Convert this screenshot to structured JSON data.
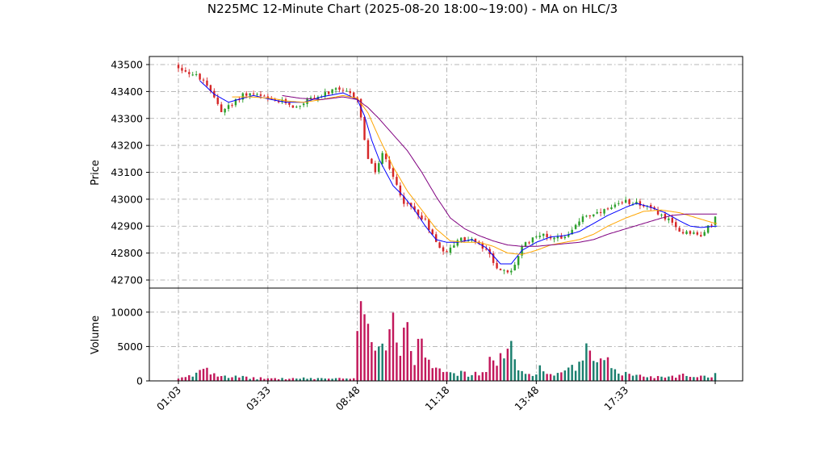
{
  "chart_data": {
    "type": "candlestick",
    "title": "N225MC 12-Minute Chart (2025-08-20 18:00~19:00) - MA on HLC/3",
    "price_panel": {
      "ylabel": "Price",
      "ylim": [
        42670,
        43530
      ],
      "yticks": [
        42700,
        42800,
        42900,
        43000,
        43100,
        43200,
        43300,
        43400,
        43500
      ],
      "grid": true
    },
    "volume_panel": {
      "ylabel": "Volume",
      "ylim": [
        0,
        13500
      ],
      "yticks": [
        0,
        5000,
        10000
      ],
      "grid": true
    },
    "x_tick_labels": [
      "01:03",
      "03:33",
      "08:48",
      "11:18",
      "13:48",
      "17:33"
    ],
    "x_tick_bar_index": [
      0,
      25,
      50,
      75,
      100,
      125
    ],
    "bar_count": 151,
    "colors": {
      "up": "#2ca02c",
      "down": "#d62728",
      "volume_up": "#1a7f6e",
      "volume_down": "#c2185b",
      "ma_fast": "#0000ff",
      "ma_mid": "#ffa500",
      "ma_slow": "#800080",
      "grid": "#a0a0a0"
    },
    "price_path_keypoints": [
      [
        0,
        43490
      ],
      [
        6,
        43450
      ],
      [
        10,
        43380
      ],
      [
        12,
        43330
      ],
      [
        15,
        43350
      ],
      [
        18,
        43390
      ],
      [
        21,
        43390
      ],
      [
        26,
        43365
      ],
      [
        30,
        43360
      ],
      [
        33,
        43340
      ],
      [
        36,
        43370
      ],
      [
        40,
        43385
      ],
      [
        44,
        43405
      ],
      [
        47,
        43395
      ],
      [
        50,
        43375
      ],
      [
        51,
        43300
      ],
      [
        53,
        43150
      ],
      [
        55,
        43100
      ],
      [
        57,
        43170
      ],
      [
        60,
        43080
      ],
      [
        63,
        42990
      ],
      [
        66,
        42960
      ],
      [
        69,
        42920
      ],
      [
        72,
        42840
      ],
      [
        75,
        42800
      ],
      [
        78,
        42850
      ],
      [
        82,
        42850
      ],
      [
        86,
        42810
      ],
      [
        90,
        42730
      ],
      [
        93,
        42730
      ],
      [
        96,
        42820
      ],
      [
        100,
        42870
      ],
      [
        104,
        42860
      ],
      [
        107,
        42860
      ],
      [
        110,
        42880
      ],
      [
        113,
        42940
      ],
      [
        116,
        42940
      ],
      [
        120,
        42960
      ],
      [
        125,
        42990
      ],
      [
        128,
        42990
      ],
      [
        131,
        42970
      ],
      [
        134,
        42950
      ],
      [
        137,
        42920
      ],
      [
        140,
        42880
      ],
      [
        143,
        42880
      ],
      [
        146,
        42860
      ],
      [
        150,
        42930
      ]
    ],
    "ma_fast_keypoints": [
      [
        6,
        43440
      ],
      [
        10,
        43390
      ],
      [
        14,
        43360
      ],
      [
        18,
        43375
      ],
      [
        21,
        43385
      ],
      [
        26,
        43370
      ],
      [
        30,
        43360
      ],
      [
        35,
        43360
      ],
      [
        40,
        43380
      ],
      [
        46,
        43395
      ],
      [
        50,
        43370
      ],
      [
        52,
        43310
      ],
      [
        54,
        43220
      ],
      [
        56,
        43150
      ],
      [
        60,
        43050
      ],
      [
        63,
        43010
      ],
      [
        66,
        42960
      ],
      [
        69,
        42900
      ],
      [
        72,
        42850
      ],
      [
        75,
        42840
      ],
      [
        78,
        42840
      ],
      [
        82,
        42850
      ],
      [
        86,
        42820
      ],
      [
        90,
        42760
      ],
      [
        93,
        42760
      ],
      [
        96,
        42810
      ],
      [
        100,
        42840
      ],
      [
        104,
        42860
      ],
      [
        108,
        42865
      ],
      [
        112,
        42880
      ],
      [
        116,
        42910
      ],
      [
        120,
        42940
      ],
      [
        125,
        42970
      ],
      [
        128,
        42985
      ],
      [
        132,
        42970
      ],
      [
        136,
        42950
      ],
      [
        140,
        42920
      ],
      [
        143,
        42900
      ],
      [
        146,
        42895
      ],
      [
        150,
        42900
      ]
    ],
    "ma_mid_keypoints": [
      [
        15,
        43380
      ],
      [
        20,
        43380
      ],
      [
        26,
        43375
      ],
      [
        30,
        43365
      ],
      [
        35,
        43360
      ],
      [
        40,
        43370
      ],
      [
        46,
        43385
      ],
      [
        50,
        43375
      ],
      [
        53,
        43320
      ],
      [
        56,
        43230
      ],
      [
        60,
        43120
      ],
      [
        64,
        43030
      ],
      [
        68,
        42960
      ],
      [
        72,
        42890
      ],
      [
        76,
        42845
      ],
      [
        80,
        42840
      ],
      [
        84,
        42840
      ],
      [
        88,
        42825
      ],
      [
        92,
        42800
      ],
      [
        96,
        42795
      ],
      [
        100,
        42810
      ],
      [
        104,
        42830
      ],
      [
        108,
        42840
      ],
      [
        112,
        42850
      ],
      [
        116,
        42870
      ],
      [
        120,
        42900
      ],
      [
        125,
        42930
      ],
      [
        130,
        42955
      ],
      [
        135,
        42960
      ],
      [
        140,
        42950
      ],
      [
        145,
        42930
      ],
      [
        150,
        42910
      ]
    ],
    "ma_slow_keypoints": [
      [
        29,
        43385
      ],
      [
        34,
        43375
      ],
      [
        40,
        43370
      ],
      [
        46,
        43380
      ],
      [
        50,
        43370
      ],
      [
        53,
        43340
      ],
      [
        56,
        43300
      ],
      [
        60,
        43240
      ],
      [
        64,
        43180
      ],
      [
        68,
        43100
      ],
      [
        72,
        43010
      ],
      [
        76,
        42930
      ],
      [
        80,
        42890
      ],
      [
        84,
        42865
      ],
      [
        88,
        42845
      ],
      [
        92,
        42830
      ],
      [
        96,
        42825
      ],
      [
        100,
        42825
      ],
      [
        104,
        42830
      ],
      [
        108,
        42835
      ],
      [
        112,
        42840
      ],
      [
        116,
        42850
      ],
      [
        120,
        42870
      ],
      [
        125,
        42890
      ],
      [
        130,
        42910
      ],
      [
        135,
        42930
      ],
      [
        138,
        42940
      ],
      [
        142,
        42945
      ],
      [
        146,
        42945
      ],
      [
        150,
        42945
      ]
    ],
    "volume_profile_keypoints": [
      [
        0,
        300
      ],
      [
        4,
        800
      ],
      [
        7,
        2400
      ],
      [
        9,
        1500
      ],
      [
        12,
        900
      ],
      [
        16,
        600
      ],
      [
        22,
        400
      ],
      [
        30,
        350
      ],
      [
        40,
        400
      ],
      [
        49,
        300
      ],
      [
        50,
        6200
      ],
      [
        52,
        13000
      ],
      [
        54,
        7500
      ],
      [
        56,
        6200
      ],
      [
        58,
        6000
      ],
      [
        60,
        10200
      ],
      [
        62,
        4500
      ],
      [
        63,
        7600
      ],
      [
        66,
        4000
      ],
      [
        67,
        7000
      ],
      [
        70,
        3500
      ],
      [
        72,
        2500
      ],
      [
        75,
        2000
      ],
      [
        78,
        1200
      ],
      [
        82,
        900
      ],
      [
        86,
        1500
      ],
      [
        88,
        3800
      ],
      [
        90,
        3500
      ],
      [
        93,
        4500
      ],
      [
        95,
        1600
      ],
      [
        98,
        1000
      ],
      [
        101,
        1800
      ],
      [
        104,
        1000
      ],
      [
        108,
        1200
      ],
      [
        112,
        2500
      ],
      [
        114,
        4200
      ],
      [
        117,
        2500
      ],
      [
        120,
        2600
      ],
      [
        124,
        1200
      ],
      [
        128,
        800
      ],
      [
        135,
        600
      ],
      [
        140,
        900
      ],
      [
        145,
        700
      ],
      [
        150,
        900
      ]
    ]
  }
}
